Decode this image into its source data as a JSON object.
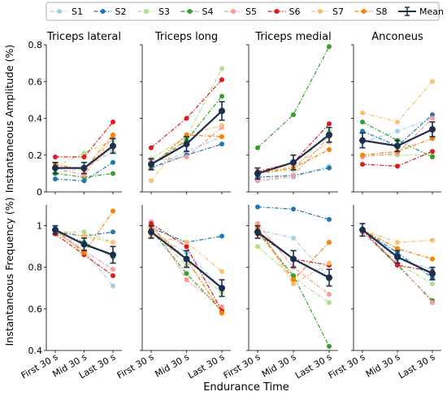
{
  "figure": {
    "x_axis_title": "Endurance Time",
    "y_axis_titles": [
      "Instantaneous Amplitude (%)",
      "Instantaneous Frequency (%)"
    ],
    "column_titles": [
      "Triceps lateral",
      "Triceps long",
      "Triceps medial",
      "Anconeus"
    ]
  },
  "legend": {
    "position": "top",
    "entries": [
      {
        "name": "S1",
        "color": "#a6cee3",
        "style": "dashdot"
      },
      {
        "name": "S2",
        "color": "#1f78b4",
        "style": "dashdot"
      },
      {
        "name": "S3",
        "color": "#b2df8a",
        "style": "dashdot"
      },
      {
        "name": "S4",
        "color": "#33a02c",
        "style": "dashdot"
      },
      {
        "name": "S5",
        "color": "#fb9a99",
        "style": "dashdot"
      },
      {
        "name": "S6",
        "color": "#e31a1c",
        "style": "dashdot"
      },
      {
        "name": "S7",
        "color": "#fdbf6f",
        "style": "dashdot"
      },
      {
        "name": "S8",
        "color": "#ff7f00",
        "style": "dashdot"
      },
      {
        "name": "Mean",
        "color": "#1b2f4f",
        "style": "solid-errorbar"
      }
    ]
  },
  "chart_data": [
    {
      "type": "line",
      "title": "Triceps lateral",
      "row": "amplitude",
      "categories": [
        "First 30 s",
        "Mid 30 s",
        "Last 30 s"
      ],
      "ylim": [
        0,
        0.8
      ],
      "yticks": [
        "0",
        "0.2",
        "0.4",
        "0.6",
        "0.8"
      ],
      "series": [
        {
          "name": "S1",
          "values": [
            0.1,
            0.13,
            0.22
          ]
        },
        {
          "name": "S2",
          "values": [
            0.07,
            0.06,
            0.16
          ]
        },
        {
          "name": "S3",
          "values": [
            0.14,
            0.21,
            0.28
          ]
        },
        {
          "name": "S4",
          "values": [
            0.1,
            0.08,
            0.1
          ]
        },
        {
          "name": "S5",
          "values": [
            0.13,
            0.09,
            0.3
          ]
        },
        {
          "name": "S6",
          "values": [
            0.19,
            0.19,
            0.38
          ]
        },
        {
          "name": "S7",
          "values": [
            0.14,
            0.12,
            0.24
          ]
        },
        {
          "name": "S8",
          "values": [
            0.15,
            0.12,
            0.31
          ]
        },
        {
          "name": "Mean",
          "values": [
            0.13,
            0.13,
            0.25
          ],
          "error": [
            0.03,
            0.03,
            0.04
          ]
        }
      ]
    },
    {
      "type": "line",
      "title": "Triceps long",
      "row": "amplitude",
      "categories": [
        "First 30 s",
        "Mid 30 s",
        "Last 30 s"
      ],
      "ylim": [
        0,
        0.8
      ],
      "yticks": [
        "0",
        "0.2",
        "0.4",
        "0.6",
        "0.8"
      ],
      "series": [
        {
          "name": "S1",
          "values": [
            0.13,
            0.22,
            0.3
          ]
        },
        {
          "name": "S2",
          "values": [
            0.13,
            0.2,
            0.26
          ]
        },
        {
          "name": "S3",
          "values": [
            0.18,
            0.3,
            0.67
          ]
        },
        {
          "name": "S4",
          "values": [
            0.15,
            0.28,
            0.52
          ]
        },
        {
          "name": "S5",
          "values": [
            0.17,
            0.19,
            0.35
          ]
        },
        {
          "name": "S6",
          "values": [
            0.24,
            0.4,
            0.61
          ]
        },
        {
          "name": "S7",
          "values": [
            0.06,
            0.31,
            0.36
          ]
        },
        {
          "name": "S8",
          "values": [
            0.14,
            0.31,
            0.3
          ]
        },
        {
          "name": "Mean",
          "values": [
            0.15,
            0.26,
            0.44
          ],
          "error": [
            0.03,
            0.04,
            0.05
          ]
        }
      ]
    },
    {
      "type": "line",
      "title": "Triceps medial",
      "row": "amplitude",
      "categories": [
        "First 30 s",
        "Mid 30 s",
        "Last 30 s"
      ],
      "ylim": [
        0,
        0.8
      ],
      "yticks": [
        "0",
        "0.2",
        "0.4",
        "0.6",
        "0.8"
      ],
      "series": [
        {
          "name": "S1",
          "values": [
            0.06,
            0.08,
            0.14
          ]
        },
        {
          "name": "S2",
          "values": [
            0.08,
            0.09,
            0.13
          ]
        },
        {
          "name": "S3",
          "values": [
            0.1,
            0.12,
            0.33
          ]
        },
        {
          "name": "S4",
          "values": [
            0.24,
            0.42,
            0.79
          ]
        },
        {
          "name": "S5",
          "values": [
            0.06,
            0.09,
            0.3
          ]
        },
        {
          "name": "S6",
          "values": [
            0.11,
            0.16,
            0.37
          ]
        },
        {
          "name": "S7",
          "values": [
            0.1,
            0.14,
            0.27
          ]
        },
        {
          "name": "S8",
          "values": [
            0.1,
            0.13,
            0.23
          ]
        },
        {
          "name": "Mean",
          "values": [
            0.1,
            0.16,
            0.31
          ],
          "error": [
            0.03,
            0.04,
            0.04
          ]
        }
      ]
    },
    {
      "type": "line",
      "title": "Anconeus",
      "row": "amplitude",
      "categories": [
        "First 30 s",
        "Mid 30 s",
        "Last 30 s"
      ],
      "ylim": [
        0,
        0.8
      ],
      "yticks": [
        "0",
        "0.2",
        "0.4",
        "0.6",
        "0.8"
      ],
      "series": [
        {
          "name": "S1",
          "values": [
            0.27,
            0.33,
            0.4
          ]
        },
        {
          "name": "S2",
          "values": [
            0.33,
            0.25,
            0.42
          ]
        },
        {
          "name": "S3",
          "values": [
            0.2,
            0.2,
            0.2
          ]
        },
        {
          "name": "S4",
          "values": [
            0.38,
            0.28,
            0.19
          ]
        },
        {
          "name": "S5",
          "values": [
            0.19,
            0.21,
            0.4
          ]
        },
        {
          "name": "S6",
          "values": [
            0.15,
            0.14,
            0.22
          ]
        },
        {
          "name": "S7",
          "values": [
            0.43,
            0.38,
            0.6
          ]
        },
        {
          "name": "S8",
          "values": [
            0.2,
            0.22,
            0.29
          ]
        },
        {
          "name": "Mean",
          "values": [
            0.28,
            0.25,
            0.34
          ],
          "error": [
            0.04,
            0.03,
            0.04
          ]
        }
      ]
    },
    {
      "type": "line",
      "title": "Triceps lateral",
      "row": "frequency",
      "categories": [
        "First 30 s",
        "Mid 30 s",
        "Last 30 s"
      ],
      "ylim": [
        0.4,
        1.1
      ],
      "yticks": [
        "0.4",
        "0.6",
        "0.8",
        "1"
      ],
      "series": [
        {
          "name": "S1",
          "values": [
            0.99,
            0.88,
            0.71
          ]
        },
        {
          "name": "S2",
          "values": [
            0.97,
            0.95,
            0.97
          ]
        },
        {
          "name": "S3",
          "values": [
            0.97,
            0.97,
            0.92
          ]
        },
        {
          "name": "S4",
          "values": [
            0.97,
            0.92,
            0.85
          ]
        },
        {
          "name": "S5",
          "values": [
            0.97,
            0.88,
            0.79
          ]
        },
        {
          "name": "S6",
          "values": [
            0.96,
            0.86,
            0.76
          ]
        },
        {
          "name": "S7",
          "values": [
            0.98,
            0.95,
            0.92
          ]
        },
        {
          "name": "S8",
          "values": [
            0.98,
            0.87,
            1.07
          ]
        },
        {
          "name": "Mean",
          "values": [
            0.98,
            0.91,
            0.86
          ],
          "error": [
            0.02,
            0.03,
            0.04
          ]
        }
      ]
    },
    {
      "type": "line",
      "title": "Triceps long",
      "row": "frequency",
      "categories": [
        "First 30 s",
        "Mid 30 s",
        "Last 30 s"
      ],
      "ylim": [
        0.4,
        1.1
      ],
      "yticks": [
        "0.4",
        "0.6",
        "0.8",
        "1"
      ],
      "series": [
        {
          "name": "S1",
          "values": [
            0.97,
            0.87,
            0.7
          ]
        },
        {
          "name": "S2",
          "values": [
            0.99,
            0.92,
            0.95
          ]
        },
        {
          "name": "S3",
          "values": [
            0.98,
            0.81,
            0.68
          ]
        },
        {
          "name": "S4",
          "values": [
            0.98,
            0.77,
            0.59
          ]
        },
        {
          "name": "S5",
          "values": [
            1.02,
            0.74,
            0.61
          ]
        },
        {
          "name": "S6",
          "values": [
            1.01,
            0.9,
            0.59
          ]
        },
        {
          "name": "S7",
          "values": [
            0.95,
            0.92,
            0.78
          ]
        },
        {
          "name": "S8",
          "values": [
            0.99,
            0.84,
            0.58
          ]
        },
        {
          "name": "Mean",
          "values": [
            0.97,
            0.84,
            0.7
          ],
          "error": [
            0.03,
            0.04,
            0.04
          ]
        }
      ]
    },
    {
      "type": "line",
      "title": "Triceps medial",
      "row": "frequency",
      "categories": [
        "First 30 s",
        "Mid 30 s",
        "Last 30 s"
      ],
      "ylim": [
        0.4,
        1.1
      ],
      "yticks": [
        "0.4",
        "0.6",
        "0.8",
        "1"
      ],
      "series": [
        {
          "name": "S1",
          "values": [
            0.98,
            0.94,
            0.75
          ]
        },
        {
          "name": "S2",
          "values": [
            1.09,
            1.08,
            1.03
          ]
        },
        {
          "name": "S3",
          "values": [
            0.9,
            0.75,
            0.63
          ]
        },
        {
          "name": "S4",
          "values": [
            0.97,
            0.76,
            0.42
          ]
        },
        {
          "name": "S5",
          "values": [
            1.01,
            0.8,
            0.67
          ]
        },
        {
          "name": "S6",
          "values": [
            0.96,
            0.84,
            0.81
          ]
        },
        {
          "name": "S7",
          "values": [
            0.99,
            0.72,
            0.82
          ]
        },
        {
          "name": "S8",
          "values": [
            0.99,
            0.74,
            0.92
          ]
        },
        {
          "name": "Mean",
          "values": [
            0.97,
            0.84,
            0.75
          ],
          "error": [
            0.03,
            0.04,
            0.04
          ]
        }
      ]
    },
    {
      "type": "line",
      "title": "Anconeus",
      "row": "frequency",
      "categories": [
        "First 30 s",
        "Mid 30 s",
        "Last 30 s"
      ],
      "ylim": [
        0.4,
        1.1
      ],
      "yticks": [
        "0.4",
        "0.6",
        "0.8",
        "1"
      ],
      "series": [
        {
          "name": "S1",
          "values": [
            0.98,
            0.84,
            0.79
          ]
        },
        {
          "name": "S2",
          "values": [
            0.98,
            0.87,
            0.75
          ]
        },
        {
          "name": "S3",
          "values": [
            0.97,
            0.82,
            0.72
          ]
        },
        {
          "name": "S4",
          "values": [
            0.97,
            0.81,
            0.64
          ]
        },
        {
          "name": "S5",
          "values": [
            0.97,
            0.82,
            0.63
          ]
        },
        {
          "name": "S6",
          "values": [
            0.98,
            0.81,
            0.78
          ]
        },
        {
          "name": "S7",
          "values": [
            0.98,
            0.92,
            0.93
          ]
        },
        {
          "name": "S8",
          "values": [
            0.98,
            0.89,
            0.84
          ]
        },
        {
          "name": "Mean",
          "values": [
            0.98,
            0.85,
            0.77
          ],
          "error": [
            0.03,
            0.03,
            0.03
          ]
        }
      ]
    }
  ]
}
